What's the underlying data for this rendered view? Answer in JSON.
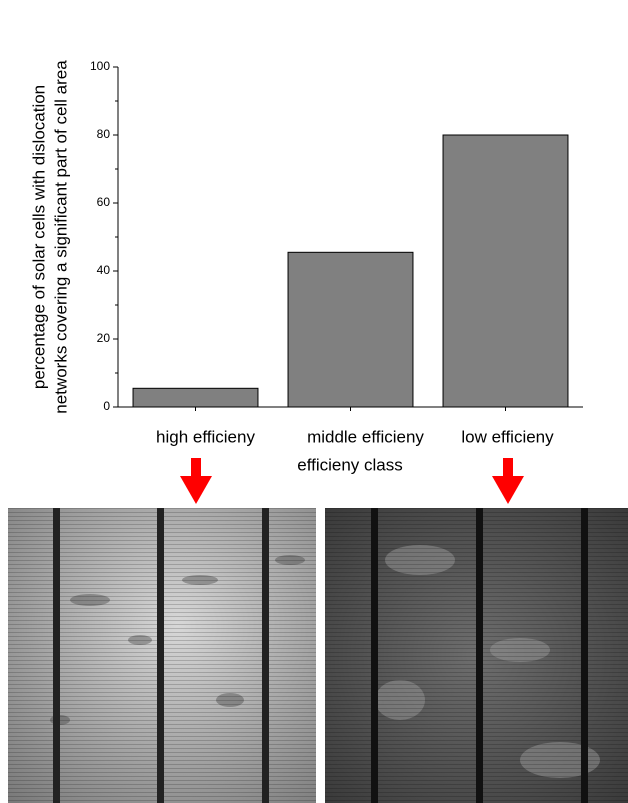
{
  "chart_data": {
    "type": "bar",
    "ylabel": [
      "percentage of solar cells with dislocation",
      "networks covering a significant part of cell area"
    ],
    "xlabel": "efficieny class",
    "categories": [
      "high efficieny",
      "middle efficieny",
      "low efficieny"
    ],
    "values": [
      5.5,
      45.5,
      80
    ],
    "color": "#808080",
    "ylim": [
      0,
      100
    ],
    "yticks": [
      0,
      20,
      40,
      60,
      80,
      100
    ]
  }
}
